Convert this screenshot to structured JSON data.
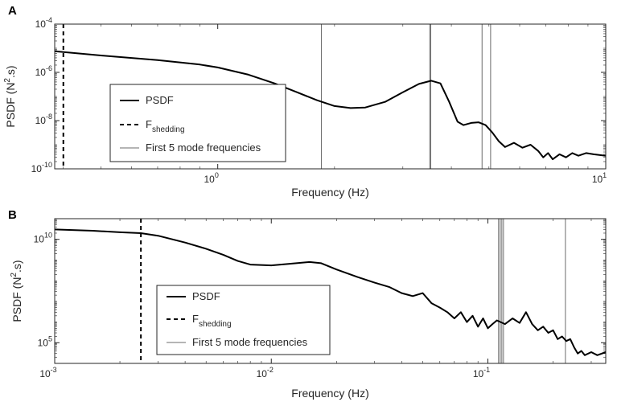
{
  "chart_data": [
    {
      "panel": "A",
      "type": "line",
      "xlabel": "Frequency (Hz)",
      "ylabel": {
        "base": "PSDF (N",
        "sup": "2",
        "tail": ".s)"
      },
      "x_scale": "log",
      "y_scale": "log",
      "xlim": [
        0.38,
        10
      ],
      "ylim": [
        1e-10,
        0.0001
      ],
      "x_ticks": [
        {
          "value": 1,
          "label": "10",
          "exp": "0"
        },
        {
          "value": 10,
          "label": "10",
          "exp": "1"
        }
      ],
      "y_ticks": [
        {
          "value": 1e-10,
          "label": "10",
          "exp": "-10"
        },
        {
          "value": 1e-08,
          "label": "10",
          "exp": "-8"
        },
        {
          "value": 1e-06,
          "label": "10",
          "exp": "-6"
        },
        {
          "value": 0.0001,
          "label": "10",
          "exp": "-4"
        }
      ],
      "grid": false,
      "legend": {
        "placement": "lower-left",
        "entries": [
          {
            "label": "PSDF",
            "style": "solid-thick"
          },
          {
            "label": "F",
            "sub": "shedding",
            "style": "dashed"
          },
          {
            "label": "First 5 mode frequencies",
            "style": "solid-thin-gray"
          }
        ]
      },
      "shedding_frequency": 0.4,
      "mode_frequencies": [
        1.85,
        3.52,
        3.54,
        4.8,
        5.05
      ],
      "series": [
        {
          "style": "psdf",
          "points": [
            [
              0.38,
              7.5e-06
            ],
            [
              0.5,
              5e-06
            ],
            [
              0.7,
              3.2e-06
            ],
            [
              0.9,
              2.1e-06
            ],
            [
              1.0,
              1.6e-06
            ],
            [
              1.2,
              8e-07
            ],
            [
              1.4,
              3.5e-07
            ],
            [
              1.6,
              1.5e-07
            ],
            [
              1.8,
              7e-08
            ],
            [
              2.0,
              4e-08
            ],
            [
              2.2,
              3.3e-08
            ],
            [
              2.4,
              3.5e-08
            ],
            [
              2.7,
              6e-08
            ],
            [
              3.0,
              1.5e-07
            ],
            [
              3.3,
              3.3e-07
            ],
            [
              3.55,
              4.5e-07
            ],
            [
              3.75,
              3.5e-07
            ],
            [
              3.95,
              6e-08
            ],
            [
              4.15,
              9e-09
            ],
            [
              4.3,
              6.5e-09
            ],
            [
              4.5,
              8e-09
            ],
            [
              4.7,
              8.5e-09
            ],
            [
              4.9,
              6.5e-09
            ],
            [
              5.1,
              3.2e-09
            ],
            [
              5.3,
              1.4e-09
            ],
            [
              5.5,
              8e-10
            ],
            [
              5.8,
              1.2e-09
            ],
            [
              6.1,
              7.5e-10
            ],
            [
              6.4,
              1e-09
            ],
            [
              6.7,
              5.5e-10
            ],
            [
              6.9,
              3e-10
            ],
            [
              7.1,
              4.5e-10
            ],
            [
              7.3,
              2.5e-10
            ],
            [
              7.6,
              4e-10
            ],
            [
              7.9,
              3e-10
            ],
            [
              8.2,
              4.5e-10
            ],
            [
              8.5,
              3.5e-10
            ],
            [
              8.9,
              4.5e-10
            ],
            [
              9.3,
              4e-10
            ],
            [
              10.0,
              3.5e-10
            ]
          ]
        }
      ]
    },
    {
      "panel": "B",
      "type": "line",
      "xlabel": "Frequency (Hz)",
      "ylabel": {
        "base": "PSDF (N",
        "sup": "2",
        "tail": ".s)"
      },
      "x_scale": "log",
      "y_scale": "log",
      "xlim": [
        0.001,
        0.35
      ],
      "ylim": [
        10000.0,
        100000000000.0
      ],
      "x_ticks": [
        {
          "value": 0.001,
          "label": "10",
          "exp": "-3"
        },
        {
          "value": 0.01,
          "label": "10",
          "exp": "-2"
        },
        {
          "value": 0.1,
          "label": "10",
          "exp": "-1"
        }
      ],
      "y_ticks": [
        {
          "value": 100000.0,
          "label": "10",
          "exp": "5"
        },
        {
          "value": 10000000000.0,
          "label": "10",
          "exp": "10"
        }
      ],
      "grid": false,
      "legend": {
        "placement": "lower-center",
        "entries": [
          {
            "label": "PSDF",
            "style": "solid-thick"
          },
          {
            "label": "F",
            "sub": "shedding",
            "style": "dashed"
          },
          {
            "label": "First 5 mode frequencies",
            "style": "solid-thin-gray"
          }
        ]
      },
      "shedding_frequency": 0.0025,
      "mode_frequencies": [
        0.112,
        0.114,
        0.116,
        0.118,
        0.228
      ],
      "series": [
        {
          "style": "psdf",
          "points": [
            [
              0.001,
              30000000000.0
            ],
            [
              0.0015,
              26000000000.0
            ],
            [
              0.002,
              22000000000.0
            ],
            [
              0.0025,
              20000000000.0
            ],
            [
              0.003,
              15000000000.0
            ],
            [
              0.004,
              7000000000.0
            ],
            [
              0.005,
              3500000000.0
            ],
            [
              0.006,
              1800000000.0
            ],
            [
              0.007,
              900000000.0
            ],
            [
              0.008,
              600000000.0
            ],
            [
              0.01,
              550000000.0
            ],
            [
              0.012,
              650000000.0
            ],
            [
              0.015,
              800000000.0
            ],
            [
              0.017,
              700000000.0
            ],
            [
              0.02,
              350000000.0
            ],
            [
              0.025,
              150000000.0
            ],
            [
              0.03,
              80000000.0
            ],
            [
              0.035,
              50000000.0
            ],
            [
              0.04,
              25000000.0
            ],
            [
              0.045,
              18000000.0
            ],
            [
              0.05,
              25000000.0
            ],
            [
              0.055,
              8000000.0
            ],
            [
              0.06,
              5000000.0
            ],
            [
              0.065,
              3000000.0
            ],
            [
              0.07,
              1500000.0
            ],
            [
              0.075,
              3000000.0
            ],
            [
              0.08,
              1000000.0
            ],
            [
              0.085,
              2000000.0
            ],
            [
              0.09,
              600000.0
            ],
            [
              0.095,
              1500000.0
            ],
            [
              0.1,
              500000.0
            ],
            [
              0.105,
              800000.0
            ],
            [
              0.11,
              1200000.0
            ],
            [
              0.12,
              800000.0
            ],
            [
              0.13,
              1500000.0
            ],
            [
              0.14,
              900000.0
            ],
            [
              0.15,
              3000000.0
            ],
            [
              0.16,
              800000.0
            ],
            [
              0.17,
              400000.0
            ],
            [
              0.18,
              600000.0
            ],
            [
              0.19,
              300000.0
            ],
            [
              0.2,
              400000.0
            ],
            [
              0.21,
              150000.0
            ],
            [
              0.22,
              200000.0
            ],
            [
              0.23,
              120000.0
            ],
            [
              0.24,
              150000.0
            ],
            [
              0.25,
              60000.0
            ],
            [
              0.26,
              30000.0
            ],
            [
              0.27,
              40000.0
            ],
            [
              0.28,
              25000.0
            ],
            [
              0.3,
              35000.0
            ],
            [
              0.32,
              25000.0
            ],
            [
              0.35,
              35000.0
            ]
          ]
        }
      ]
    }
  ]
}
